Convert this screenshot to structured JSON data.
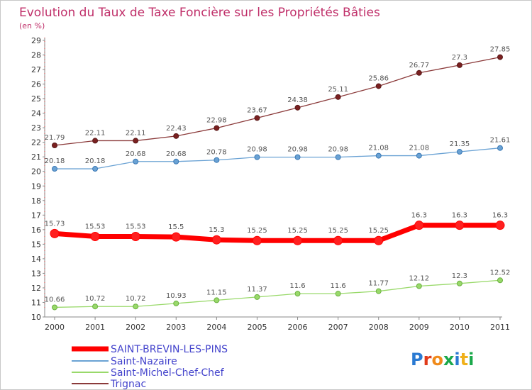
{
  "chart_data": {
    "type": "line",
    "title": "Evolution du Taux de Taxe Foncière sur les Propriétés Bâties",
    "subtitle": "(en %)",
    "x": [
      "2000",
      "2001",
      "2002",
      "2003",
      "2004",
      "2005",
      "2006",
      "2007",
      "2008",
      "2009",
      "2010",
      "2011"
    ],
    "ylim": [
      10,
      29
    ],
    "yticks": [
      "10",
      "11",
      "12",
      "13",
      "14",
      "15",
      "16",
      "17",
      "18",
      "19",
      "20",
      "21",
      "22",
      "23",
      "24",
      "25",
      "26",
      "27",
      "28",
      "29"
    ],
    "grid": false,
    "legend_position": "bottom-left",
    "series": [
      {
        "name": "SAINT-BREVIN-LES-PINS",
        "color": "#ff0000",
        "values": [
          15.73,
          15.53,
          15.53,
          15.5,
          15.3,
          15.25,
          15.25,
          15.25,
          15.25,
          16.3,
          16.3,
          16.3
        ],
        "labels": [
          "15.73",
          "15.53",
          "15.53",
          "15.5",
          "15.3",
          "15.25",
          "15.25",
          "15.25",
          "15.25",
          "16.3",
          "16.3",
          "16.3"
        ]
      },
      {
        "name": "Saint-Nazaire",
        "color": "#6aa2d4",
        "values": [
          20.18,
          20.18,
          20.68,
          20.68,
          20.78,
          20.98,
          20.98,
          20.98,
          21.08,
          21.08,
          21.35,
          21.61
        ],
        "labels": [
          "20.18",
          "20.18",
          "20.68",
          "20.68",
          "20.78",
          "20.98",
          "20.98",
          "20.98",
          "21.08",
          "21.08",
          "21.35",
          "21.61"
        ]
      },
      {
        "name": "Saint-Michel-Chef-Chef",
        "color": "#99d96a",
        "values": [
          10.66,
          10.72,
          10.72,
          10.93,
          11.15,
          11.37,
          11.6,
          11.6,
          11.77,
          12.12,
          12.3,
          12.52
        ],
        "labels": [
          "10.66",
          "10.72",
          "10.72",
          "10.93",
          "11.15",
          "11.37",
          "11.6",
          "11.6",
          "11.77",
          "12.12",
          "12.3",
          "12.52"
        ]
      },
      {
        "name": "Trignac",
        "color": "#8b3a3a",
        "values": [
          21.79,
          22.11,
          22.11,
          22.43,
          22.98,
          23.67,
          24.38,
          25.11,
          25.86,
          26.77,
          27.3,
          27.85
        ],
        "labels": [
          "21.79",
          "22.11",
          "22.11",
          "22.43",
          "22.98",
          "23.67",
          "24.38",
          "25.11",
          "25.86",
          "26.77",
          "27.3",
          "27.85"
        ]
      }
    ]
  },
  "branding": {
    "logo_text": "Proxiti"
  }
}
